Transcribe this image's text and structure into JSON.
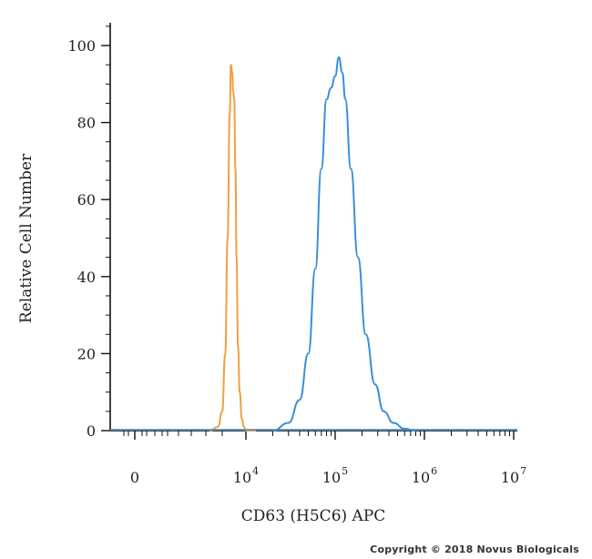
{
  "chart_data": {
    "type": "line",
    "title": "",
    "xlabel": "CD63 (H5C6) APC",
    "ylabel": "Relative Cell Number",
    "xscale": "biexponential",
    "ylim": [
      0,
      100
    ],
    "y_ticks": [
      "0",
      "20",
      "40",
      "60",
      "80",
      "100"
    ],
    "x_ticks": [
      {
        "label": "0",
        "exp": ""
      },
      {
        "label": "10",
        "exp": "4"
      },
      {
        "label": "10",
        "exp": "5"
      },
      {
        "label": "10",
        "exp": "6"
      },
      {
        "label": "10",
        "exp": "7"
      }
    ],
    "grid": false,
    "legend": "none",
    "series": [
      {
        "color": "#f0a040",
        "x": [
          500,
          1000,
          1400,
          1800,
          2200,
          2600,
          2900,
          3200,
          3500,
          3800,
          4200,
          4600,
          5200,
          6000,
          7200,
          8500,
          10000,
          13000
        ],
        "y": [
          0,
          1,
          5,
          20,
          50,
          82,
          95,
          93,
          88,
          86,
          68,
          45,
          22,
          10,
          3,
          1,
          0,
          0
        ]
      },
      {
        "color": "#3a8fd8",
        "x": [
          20000,
          30000,
          40000,
          50000,
          60000,
          70000,
          80000,
          90000,
          100000,
          110000,
          120000,
          130000,
          150000,
          180000,
          220000,
          280000,
          350000,
          450000,
          600000,
          800000
        ],
        "y": [
          0,
          2,
          8,
          20,
          42,
          68,
          86,
          89,
          92,
          97,
          93,
          86,
          68,
          45,
          25,
          12,
          5,
          2,
          0.5,
          0
        ]
      }
    ]
  },
  "footer": {
    "copyright": "Copyright © 2018 Novus Biologicals"
  }
}
